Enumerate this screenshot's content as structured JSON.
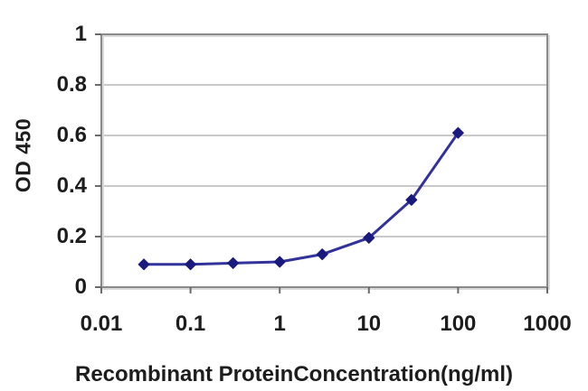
{
  "figure": {
    "background": "#ffffff"
  },
  "colors": {
    "grid": "#c9c9c9",
    "frame": "#8a8a8a",
    "tick": "#6b6b6b",
    "text": "#1d1d1d",
    "line": "#32329b",
    "marker": "#1a1a7e",
    "plot_shadow": "#d9d9d9"
  },
  "chart_data": {
    "type": "line",
    "title": "",
    "xlabel": "Recombinant ProteinConcentration(ng/ml)",
    "ylabel": "OD 450",
    "x_scale": "log",
    "xlim": [
      0.01,
      1000
    ],
    "ylim": [
      0,
      1
    ],
    "x_ticks": [
      0.01,
      0.1,
      1,
      10,
      100,
      1000
    ],
    "x_tick_labels": [
      "0.01",
      "0.1",
      "1",
      "10",
      "100",
      "1000"
    ],
    "y_ticks": [
      0,
      0.2,
      0.4,
      0.6,
      0.8,
      1
    ],
    "y_tick_labels": [
      "0",
      "0.2",
      "0.4",
      "0.6",
      "0.8",
      "1"
    ],
    "grid": "horizontal",
    "legend": "none",
    "series": [
      {
        "name": "OD450",
        "marker": "diamond",
        "x": [
          0.03,
          0.1,
          0.3,
          1,
          3,
          10,
          30,
          100
        ],
        "y": [
          0.09,
          0.09,
          0.095,
          0.1,
          0.13,
          0.195,
          0.345,
          0.61
        ]
      }
    ]
  }
}
